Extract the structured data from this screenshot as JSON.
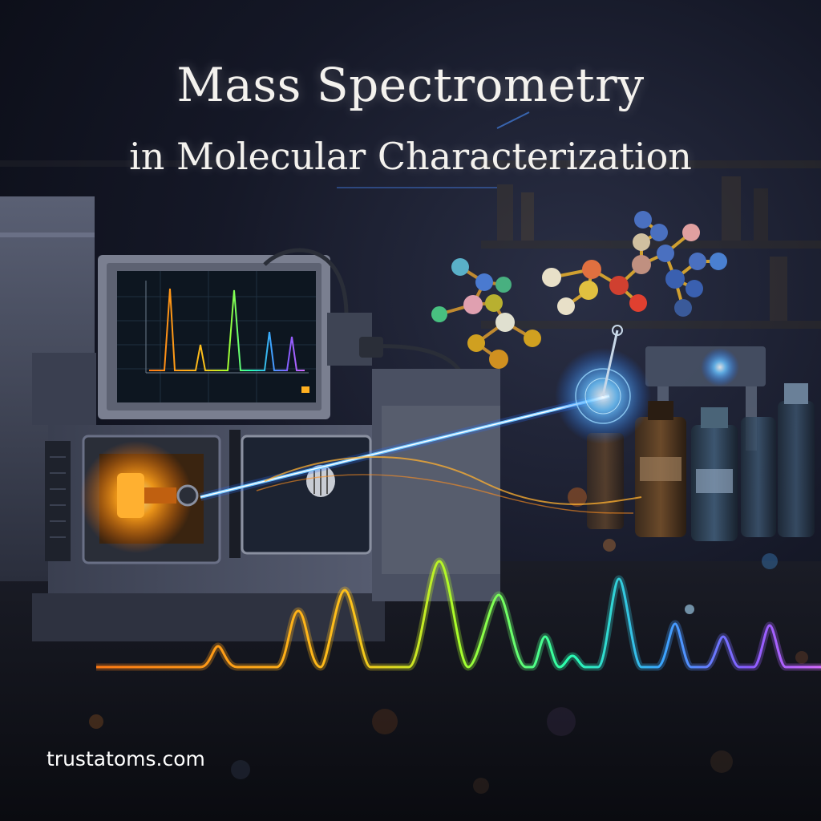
{
  "title": {
    "line1": "Mass Spectrometry",
    "line2": "in Molecular Characterization"
  },
  "website": "trustatoms.com",
  "colors": {
    "background": "#0b0d16",
    "beam": "#4aa8ff",
    "source_glow": "#ffa21a",
    "text": "#f4f2ee"
  },
  "image_description_icons": [
    "mass-spectrometer-illustration",
    "molecule-model-icon",
    "spectrum-wave-icon",
    "reagent-bottles-icon"
  ]
}
